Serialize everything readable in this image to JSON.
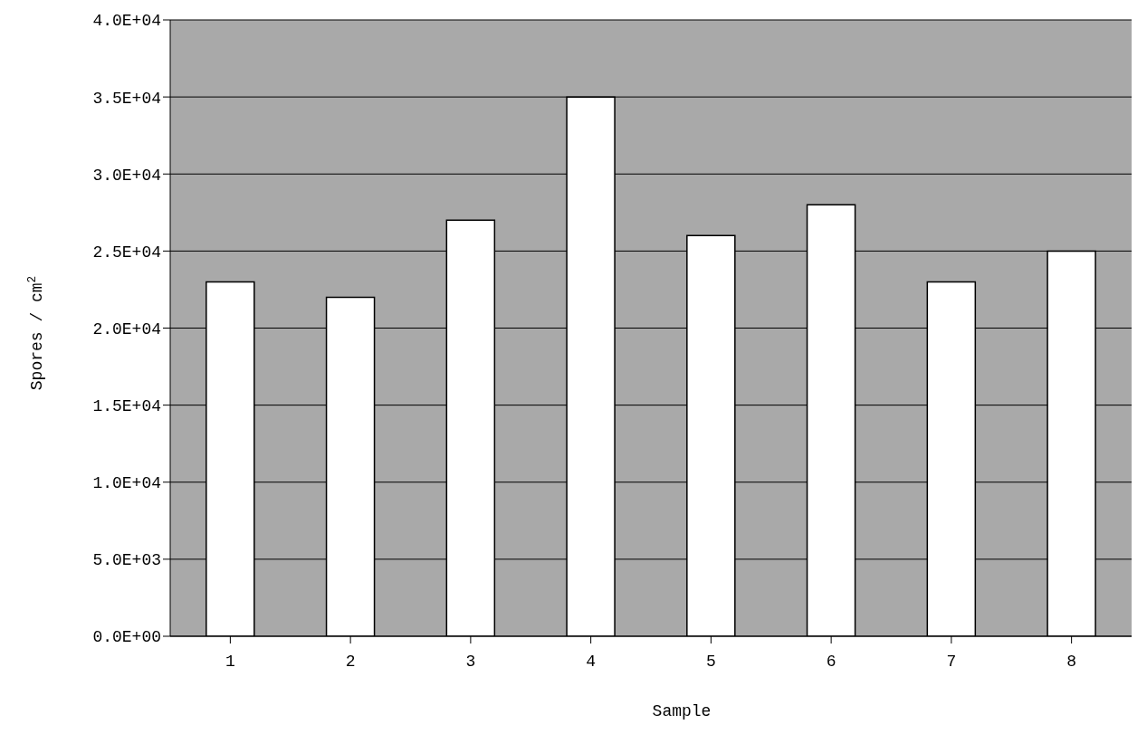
{
  "chart_data": {
    "type": "bar",
    "xlabel": "Sample",
    "ylabel": "Spores / cm$^{2}$",
    "categories": [
      "1",
      "2",
      "3",
      "4",
      "5",
      "6",
      "7",
      "8"
    ],
    "values": [
      23000,
      22000,
      27000,
      35000,
      26000,
      28000,
      23000,
      25000
    ],
    "color": "#ffffff",
    "ylim": [
      0,
      40000
    ],
    "yticks": [
      {
        "value": 0,
        "label": "0.0E+00"
      },
      {
        "value": 5000,
        "label": "5.0E+03"
      },
      {
        "value": 10000,
        "label": "1.0E+04"
      },
      {
        "value": 15000,
        "label": "1.5E+04"
      },
      {
        "value": 20000,
        "label": "2.0E+04"
      },
      {
        "value": 25000,
        "label": "2.5E+04"
      },
      {
        "value": 30000,
        "label": "3.0E+04"
      },
      {
        "value": 35000,
        "label": "3.5E+04"
      },
      {
        "value": 40000,
        "label": "4.0E+04"
      }
    ],
    "grid": "y",
    "legend": false
  }
}
